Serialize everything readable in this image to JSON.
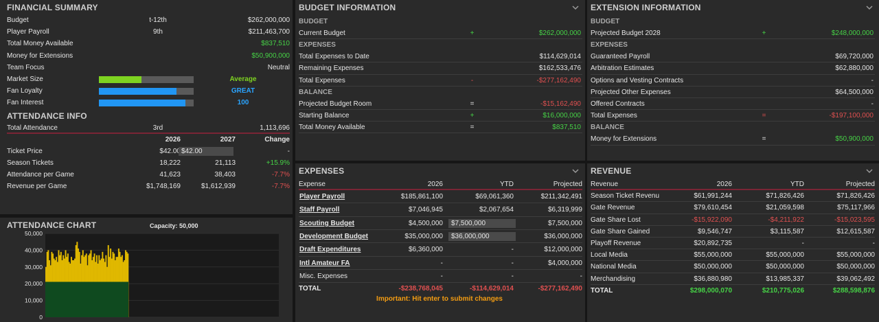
{
  "financial": {
    "title": "FINANCIAL SUMMARY",
    "rows": [
      {
        "label": "Budget",
        "mid": "t-12th",
        "value": "$262,000,000",
        "color": ""
      },
      {
        "label": "Player Payroll",
        "mid": "9th",
        "value": "$211,463,700",
        "color": ""
      },
      {
        "label": "Total Money Available",
        "mid": "",
        "value": "$837,510",
        "color": "green"
      },
      {
        "label": "Money for Extensions",
        "mid": "",
        "value": "$50,900,000",
        "color": "green"
      },
      {
        "label": "Team Focus",
        "mid": "",
        "value": "Neutral",
        "color": ""
      }
    ],
    "meters": [
      {
        "label": "Market Size",
        "level": 0.45,
        "fill": "#7ed321",
        "text": "Average",
        "textcolor": "lgreen"
      },
      {
        "label": "Fan Loyalty",
        "level": 0.82,
        "fill": "#2196f3",
        "text": "GREAT",
        "textcolor": "blue"
      },
      {
        "label": "Fan Interest",
        "level": 0.91,
        "fill": "#2196f3",
        "text": "100",
        "textcolor": "blue"
      }
    ]
  },
  "attendance": {
    "title": "ATTENDANCE INFO",
    "total": {
      "label": "Total Attendance",
      "mid": "3rd",
      "value": "1,113,696"
    },
    "cols": [
      "",
      "2026",
      "2027",
      "Change"
    ],
    "rows": [
      {
        "label": "Ticket Price",
        "a": "$42.00",
        "b": "$42.00",
        "c": "-",
        "cc": "",
        "input": true
      },
      {
        "label": "Season Tickets",
        "a": "18,222",
        "b": "21,113",
        "c": "+15.9%",
        "cc": "green"
      },
      {
        "label": "Attendance per Game",
        "a": "41,623",
        "b": "38,403",
        "c": "-7.7%",
        "cc": "red"
      },
      {
        "label": "Revenue per Game",
        "a": "$1,748,169",
        "b": "$1,612,939",
        "c": "-7.7%",
        "cc": "red"
      }
    ]
  },
  "att_chart": {
    "title": "ATTENDANCE CHART",
    "capacity": "Capacity: 50,000"
  },
  "chart_data": {
    "type": "bar",
    "title": "ATTENDANCE CHART",
    "subtitle": "Capacity: 50,000",
    "ylim": [
      0,
      50000
    ],
    "yticks": [
      "50,000",
      "40,000",
      "30,000",
      "20,000",
      "10,000",
      "0"
    ],
    "season_tickets": 21113,
    "values": [
      30000,
      39000,
      40000,
      34000,
      31000,
      39000,
      38000,
      35000,
      34000,
      36000,
      33000,
      40000,
      37000,
      39000,
      34000,
      37000,
      35000,
      40000,
      36000,
      38000,
      33000,
      32000,
      36000,
      34000,
      34000,
      35000,
      43000,
      45000,
      41000,
      39000,
      32000,
      37000,
      40000,
      36000,
      37000,
      38000,
      31000,
      37000,
      38000,
      40000,
      34000,
      36000,
      38000,
      33000,
      37000,
      32000,
      37000,
      34000,
      35000,
      39000,
      35000,
      33000,
      37000,
      30000,
      43000,
      36000,
      41000,
      35000,
      39000,
      38000,
      34000,
      36000,
      36000,
      41000,
      39000,
      36000,
      37000,
      33000,
      34000,
      40000,
      39000,
      38000
    ]
  },
  "budget": {
    "title": "BUDGET INFORMATION",
    "sections": [
      {
        "head": "BUDGET",
        "rows": [
          {
            "label": "Current Budget",
            "op": "+",
            "value": "$262,000,000",
            "color": "green",
            "opc": "green"
          }
        ]
      },
      {
        "head": "EXPENSES",
        "rows": [
          {
            "label": "Total Expenses to Date",
            "op": "",
            "value": "$114,629,014",
            "color": "",
            "opc": ""
          },
          {
            "label": "Remaining Expenses",
            "op": "",
            "value": "$162,533,476",
            "color": "",
            "opc": ""
          },
          {
            "label": "Total Expenses",
            "op": "-",
            "value": "-$277,162,490",
            "color": "red",
            "opc": "red"
          }
        ]
      },
      {
        "head": "BALANCE",
        "rows": [
          {
            "label": "Projected Budget Room",
            "op": "=",
            "value": "-$15,162,490",
            "color": "red",
            "opc": ""
          },
          {
            "label": "Starting Balance",
            "op": "+",
            "value": "$16,000,000",
            "color": "green",
            "opc": "green"
          },
          {
            "label": "Total Money Available",
            "op": "=",
            "value": "$837,510",
            "color": "green",
            "opc": ""
          }
        ]
      }
    ]
  },
  "extension": {
    "title": "EXTENSION INFORMATION",
    "sections": [
      {
        "head": "BUDGET",
        "rows": [
          {
            "label": "Projected Budget 2028",
            "op": "+",
            "value": "$248,000,000",
            "color": "green",
            "opc": "green"
          }
        ]
      },
      {
        "head": "EXPENSES",
        "rows": [
          {
            "label": "Guaranteed Payroll",
            "op": "",
            "value": "$69,720,000",
            "color": "",
            "opc": ""
          },
          {
            "label": "Arbitration Estimates",
            "op": "",
            "value": "$62,880,000",
            "color": "",
            "opc": ""
          },
          {
            "label": "Options and Vesting Contracts",
            "op": "",
            "value": "-",
            "color": "",
            "opc": ""
          },
          {
            "label": "Projected Other Expenses",
            "op": "",
            "value": "$64,500,000",
            "color": "",
            "opc": ""
          },
          {
            "label": "Offered Contracts",
            "op": "",
            "value": "-",
            "color": "",
            "opc": ""
          },
          {
            "label": "Total Expenses",
            "op": "=",
            "value": "-$197,100,000",
            "color": "red",
            "opc": "red"
          }
        ]
      },
      {
        "head": "BALANCE",
        "rows": [
          {
            "label": "Money for Extensions",
            "op": "=",
            "value": "$50,900,000",
            "color": "green",
            "opc": ""
          }
        ]
      }
    ]
  },
  "expenses": {
    "title": "EXPENSES",
    "cols": [
      "Expense",
      "2026",
      "YTD",
      "Projected"
    ],
    "rows": [
      {
        "label": "Player Payroll",
        "a": "$185,861,100",
        "b": "$69,061,360",
        "c": "$211,342,491",
        "link": true,
        "input": false
      },
      {
        "label": "Staff Payroll",
        "a": "$7,046,945",
        "b": "$2,067,654",
        "c": "$6,319,999",
        "link": true,
        "input": false
      },
      {
        "label": "Scouting Budget",
        "a": "$4,500,000",
        "b": "$7,500,000",
        "c": "$7,500,000",
        "link": true,
        "input": true
      },
      {
        "label": "Development Budget",
        "a": "$35,000,000",
        "b": "$36,000,000",
        "c": "$36,000,000",
        "link": true,
        "input": true
      },
      {
        "label": "Draft Expenditures",
        "a": "$6,360,000",
        "b": "-",
        "c": "$12,000,000",
        "link": true,
        "input": false
      },
      {
        "label": "Intl Amateur FA",
        "a": "-",
        "b": "-",
        "c": "$4,000,000",
        "link": true,
        "input": false
      },
      {
        "label": "Misc. Expenses",
        "a": "-",
        "b": "-",
        "c": "-",
        "link": false,
        "input": false
      }
    ],
    "total": {
      "label": "TOTAL",
      "a": "-$238,768,045",
      "b": "-$114,629,014",
      "c": "-$277,162,490"
    },
    "note": "Important: Hit enter to submit changes"
  },
  "revenue": {
    "title": "REVENUE",
    "cols": [
      "Revenue",
      "2026",
      "YTD",
      "Projected"
    ],
    "rows": [
      {
        "label": "Season Ticket Revenue",
        "a": "$61,991,244",
        "b": "$71,826,426",
        "c": "$71,826,426",
        "ac": "",
        "bc": "",
        "cc": ""
      },
      {
        "label": "Gate Revenue",
        "a": "$79,610,454",
        "b": "$21,059,598",
        "c": "$75,117,966",
        "ac": "",
        "bc": "",
        "cc": ""
      },
      {
        "label": "Gate Share Lost",
        "a": "-$15,922,090",
        "b": "-$4,211,922",
        "c": "-$15,023,595",
        "ac": "red",
        "bc": "red",
        "cc": "red"
      },
      {
        "label": "Gate Share Gained",
        "a": "$9,546,747",
        "b": "$3,115,587",
        "c": "$12,615,587",
        "ac": "",
        "bc": "",
        "cc": ""
      },
      {
        "label": "Playoff Revenue",
        "a": "$20,892,735",
        "b": "-",
        "c": "-",
        "ac": "",
        "bc": "",
        "cc": ""
      },
      {
        "label": "Local Media",
        "a": "$55,000,000",
        "b": "$55,000,000",
        "c": "$55,000,000",
        "ac": "",
        "bc": "",
        "cc": ""
      },
      {
        "label": "National Media",
        "a": "$50,000,000",
        "b": "$50,000,000",
        "c": "$50,000,000",
        "ac": "",
        "bc": "",
        "cc": ""
      },
      {
        "label": "Merchandising",
        "a": "$36,880,980",
        "b": "$13,985,337",
        "c": "$39,062,492",
        "ac": "",
        "bc": "",
        "cc": ""
      }
    ],
    "total": {
      "label": "TOTAL",
      "a": "$298,000,070",
      "b": "$210,775,026",
      "c": "$288,598,876"
    }
  }
}
